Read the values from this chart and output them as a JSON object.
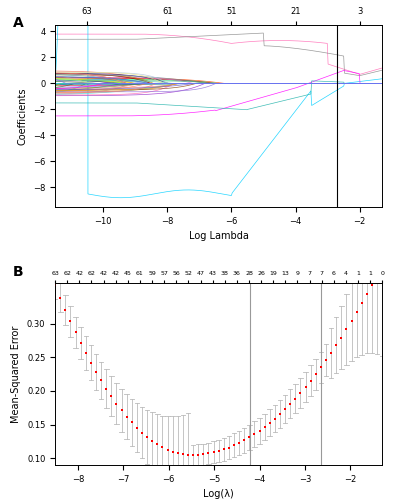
{
  "panel_A": {
    "xlabel": "Log Lambda",
    "ylabel": "Coefficients",
    "top_axis_labels": [
      "63",
      "61",
      "51",
      "21",
      "3"
    ],
    "top_axis_positions": [
      -10.5,
      -8.0,
      -6.0,
      -4.0,
      -2.0
    ],
    "xlim": [
      -11.5,
      -1.3
    ],
    "ylim": [
      -9.5,
      4.5
    ],
    "yticks": [
      -8,
      -6,
      -4,
      -2,
      0,
      2,
      4
    ],
    "vline_x": -2.7,
    "n_features": 63,
    "colors": [
      "#FF69B4",
      "#888888",
      "#00CFFF",
      "#FF1493",
      "#20B2AA",
      "#9400D3",
      "#FF6347",
      "#4169E1",
      "#2E8B57",
      "#FF8C00",
      "#8B008B",
      "#00FA9A",
      "#DC143C",
      "#1E90FF",
      "#6B8E23",
      "#FF4500",
      "#7B68EE",
      "#00FF7F",
      "#CC0000",
      "#6495ED",
      "#7FFF00",
      "#DA70D6",
      "#40E0D0",
      "#B8860B",
      "#9932CC",
      "#5F9EA0",
      "#E9967A",
      "#4682B4",
      "#D2691E",
      "#556B2F",
      "#FF69B4",
      "#2F4F4F",
      "#8B4513",
      "#191970",
      "#BC8F8F",
      "#008080",
      "#FFD700",
      "#C71585",
      "#006400",
      "#8B0000",
      "#708090",
      "#FF7F50",
      "#3CB371",
      "#9370DB",
      "#66CDAA",
      "#F08080",
      "#778899",
      "#B0C4DE",
      "#DAA520",
      "#90EE90",
      "#87CEEB",
      "#DDA0DD",
      "#F0E68C",
      "#FFA07A",
      "#7CFC00",
      "#D2B48C",
      "#4169E1",
      "#FA8072",
      "#98FB98",
      "#6A5ACD",
      "#FF00FF",
      "#00BFFF",
      "#7B68EE"
    ]
  },
  "panel_B": {
    "xlabel": "Log(λ)",
    "ylabel": "Mean-Squared Error",
    "top_axis_labels": [
      "63",
      "62",
      "42",
      "62",
      "42",
      "42",
      "45",
      "61",
      "59",
      "57",
      "56",
      "52",
      "47",
      "43",
      "38",
      "36",
      "28",
      "26",
      "19",
      "13",
      "9",
      "7",
      "7",
      "6",
      "4",
      "1",
      "1",
      "0"
    ],
    "xlim": [
      -8.5,
      -1.3
    ],
    "ylim": [
      0.09,
      0.36
    ],
    "yticks": [
      0.1,
      0.15,
      0.2,
      0.25,
      0.3
    ],
    "vline1_x": -4.2,
    "vline2_x": -2.65,
    "dot_color": "#FF0000",
    "error_bar_color": "#BBBBBB"
  }
}
